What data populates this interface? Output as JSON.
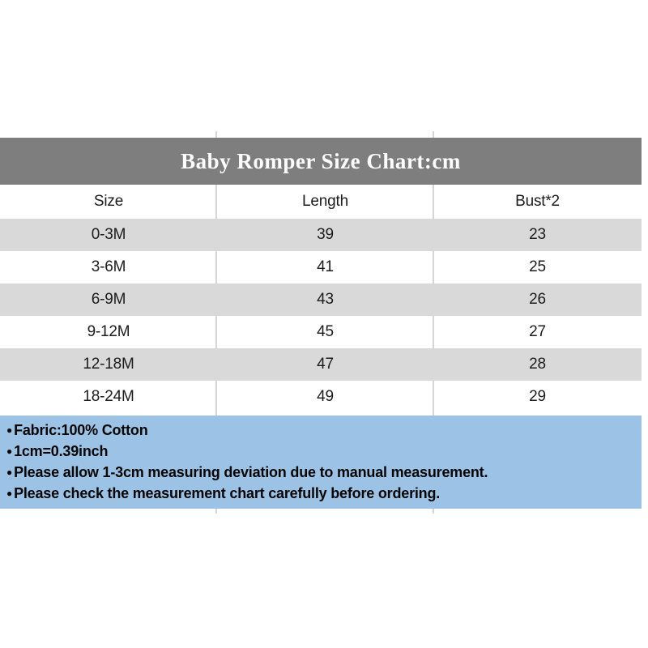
{
  "title": "Baby Romper Size Chart:cm",
  "table": {
    "columns": [
      "Size",
      "Length",
      "Bust*2"
    ],
    "rows": [
      {
        "size": "0-3M",
        "length": "39",
        "bust": "23"
      },
      {
        "size": "3-6M",
        "length": "41",
        "bust": "25"
      },
      {
        "size": "6-9M",
        "length": "43",
        "bust": "26"
      },
      {
        "size": "9-12M",
        "length": "45",
        "bust": "27"
      },
      {
        "size": "12-18M",
        "length": "47",
        "bust": "28"
      },
      {
        "size": "18-24M",
        "length": "49",
        "bust": "29"
      }
    ]
  },
  "footer": {
    "bullet": "●",
    "notes": [
      "Fabric:100% Cotton",
      "1cm=0.39inch",
      "Please allow 1-3cm measuring deviation due to manual measurement.",
      "Please check the measurement chart carefully before ordering."
    ]
  },
  "colors": {
    "title_bar_bg": "#7e7e7e",
    "title_text": "#ffffff",
    "row_stripe_bg": "#d9d9d9",
    "notes_panel_bg": "#9cc2e5",
    "grid_line": "#d6d6d6",
    "body_text": "#1c1c1c"
  },
  "chart_data": {
    "type": "table",
    "title": "Baby Romper Size Chart:cm",
    "unit": "cm",
    "columns": [
      "Size",
      "Length",
      "Bust*2"
    ],
    "rows": [
      [
        "0-3M",
        39,
        23
      ],
      [
        "3-6M",
        41,
        25
      ],
      [
        "6-9M",
        43,
        26
      ],
      [
        "9-12M",
        45,
        27
      ],
      [
        "12-18M",
        47,
        28
      ],
      [
        "18-24M",
        49,
        29
      ]
    ],
    "notes": [
      "Fabric:100% Cotton",
      "1cm=0.39inch",
      "Please allow 1-3cm measuring deviation due to manual measurement.",
      "Please check the measurement chart carefully before ordering."
    ]
  }
}
